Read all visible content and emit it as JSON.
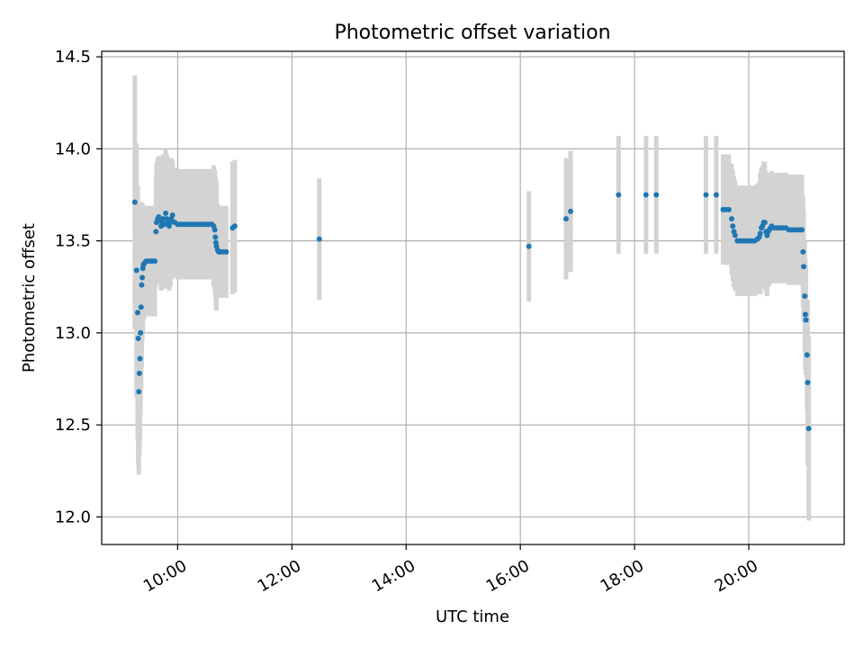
{
  "chart_data": {
    "type": "scatter",
    "title": "Photometric offset variation",
    "xlabel": "UTC time",
    "ylabel": "Photometric offset",
    "x_unit": "hour",
    "xlim": [
      8.67,
      21.67
    ],
    "ylim": [
      11.85,
      14.53
    ],
    "x_ticks": [
      {
        "value": 10,
        "label": "10:00"
      },
      {
        "value": 12,
        "label": "12:00"
      },
      {
        "value": 14,
        "label": "14:00"
      },
      {
        "value": 16,
        "label": "16:00"
      },
      {
        "value": 18,
        "label": "18:00"
      },
      {
        "value": 20,
        "label": "20:00"
      }
    ],
    "y_ticks": [
      {
        "value": 12.0,
        "label": "12.0"
      },
      {
        "value": 12.5,
        "label": "12.5"
      },
      {
        "value": 13.0,
        "label": "13.0"
      },
      {
        "value": 13.5,
        "label": "13.5"
      },
      {
        "value": 14.0,
        "label": "14.0"
      },
      {
        "value": 14.5,
        "label": "14.5"
      }
    ],
    "grid": true,
    "colors": {
      "points": "#1f77b4",
      "error_bars": "#d3d3d3",
      "grid": "#b0b0b0",
      "axes": "#000000"
    },
    "series": [
      {
        "points": [
          [
            9.25,
            13.71,
            0.69
          ],
          [
            9.28,
            13.34,
            0.69
          ],
          [
            9.3,
            13.11,
            0.69
          ],
          [
            9.31,
            12.97,
            0.69
          ],
          [
            9.32,
            12.68,
            0.45
          ],
          [
            9.33,
            12.78,
            0.45
          ],
          [
            9.34,
            12.86,
            0.45
          ],
          [
            9.35,
            13.0,
            0.45
          ],
          [
            9.36,
            13.14,
            0.45
          ],
          [
            9.37,
            13.26,
            0.45
          ],
          [
            9.38,
            13.3,
            0.35
          ],
          [
            9.39,
            13.35,
            0.35
          ],
          [
            9.4,
            13.37,
            0.3
          ],
          [
            9.42,
            13.38,
            0.3
          ],
          [
            9.45,
            13.39,
            0.3
          ],
          [
            9.5,
            13.39,
            0.3
          ],
          [
            9.55,
            13.39,
            0.3
          ],
          [
            9.6,
            13.39,
            0.3
          ],
          [
            9.62,
            13.55,
            0.3
          ],
          [
            9.63,
            13.6,
            0.33
          ],
          [
            9.65,
            13.62,
            0.33
          ],
          [
            9.67,
            13.63,
            0.33
          ],
          [
            9.69,
            13.61,
            0.33
          ],
          [
            9.71,
            13.58,
            0.35
          ],
          [
            9.73,
            13.6,
            0.35
          ],
          [
            9.75,
            13.62,
            0.35
          ],
          [
            9.77,
            13.59,
            0.35
          ],
          [
            9.79,
            13.65,
            0.35
          ],
          [
            9.81,
            13.62,
            0.35
          ],
          [
            9.83,
            13.6,
            0.35
          ],
          [
            9.85,
            13.58,
            0.35
          ],
          [
            9.87,
            13.6,
            0.35
          ],
          [
            9.89,
            13.62,
            0.33
          ],
          [
            9.91,
            13.64,
            0.3
          ],
          [
            9.95,
            13.6,
            0.3
          ],
          [
            10.0,
            13.59,
            0.3
          ],
          [
            10.05,
            13.59,
            0.3
          ],
          [
            10.1,
            13.59,
            0.3
          ],
          [
            10.15,
            13.59,
            0.3
          ],
          [
            10.2,
            13.59,
            0.3
          ],
          [
            10.25,
            13.59,
            0.3
          ],
          [
            10.3,
            13.59,
            0.3
          ],
          [
            10.35,
            13.59,
            0.3
          ],
          [
            10.4,
            13.59,
            0.3
          ],
          [
            10.45,
            13.59,
            0.3
          ],
          [
            10.5,
            13.59,
            0.3
          ],
          [
            10.55,
            13.59,
            0.3
          ],
          [
            10.6,
            13.59,
            0.3
          ],
          [
            10.63,
            13.58,
            0.33
          ],
          [
            10.65,
            13.56,
            0.33
          ],
          [
            10.66,
            13.52,
            0.33
          ],
          [
            10.67,
            13.49,
            0.35
          ],
          [
            10.68,
            13.47,
            0.35
          ],
          [
            10.7,
            13.45,
            0.25
          ],
          [
            10.72,
            13.44,
            0.25
          ],
          [
            10.75,
            13.44,
            0.25
          ],
          [
            10.8,
            13.44,
            0.25
          ],
          [
            10.85,
            13.44,
            0.25
          ],
          [
            10.96,
            13.57,
            0.36
          ],
          [
            11.0,
            13.58,
            0.36
          ],
          [
            12.48,
            13.51,
            0.33
          ],
          [
            16.15,
            13.47,
            0.3
          ],
          [
            16.8,
            13.62,
            0.33
          ],
          [
            16.88,
            13.66,
            0.33
          ],
          [
            17.72,
            13.75,
            0.32
          ],
          [
            18.2,
            13.75,
            0.32
          ],
          [
            18.38,
            13.75,
            0.32
          ],
          [
            19.25,
            13.75,
            0.32
          ],
          [
            19.43,
            13.75,
            0.32
          ],
          [
            19.55,
            13.67,
            0.3
          ],
          [
            19.6,
            13.67,
            0.3
          ],
          [
            19.65,
            13.67,
            0.3
          ],
          [
            19.7,
            13.62,
            0.3
          ],
          [
            19.72,
            13.58,
            0.3
          ],
          [
            19.74,
            13.55,
            0.3
          ],
          [
            19.76,
            13.53,
            0.3
          ],
          [
            19.8,
            13.5,
            0.3
          ],
          [
            19.85,
            13.5,
            0.3
          ],
          [
            19.9,
            13.5,
            0.3
          ],
          [
            19.95,
            13.5,
            0.3
          ],
          [
            20.0,
            13.5,
            0.3
          ],
          [
            20.05,
            13.5,
            0.3
          ],
          [
            20.1,
            13.5,
            0.3
          ],
          [
            20.15,
            13.51,
            0.3
          ],
          [
            20.18,
            13.52,
            0.3
          ],
          [
            20.2,
            13.54,
            0.33
          ],
          [
            20.22,
            13.57,
            0.33
          ],
          [
            20.24,
            13.58,
            0.33
          ],
          [
            20.26,
            13.6,
            0.33
          ],
          [
            20.28,
            13.6,
            0.33
          ],
          [
            20.3,
            13.55,
            0.33
          ],
          [
            20.32,
            13.53,
            0.33
          ],
          [
            20.34,
            13.55,
            0.3
          ],
          [
            20.36,
            13.56,
            0.3
          ],
          [
            20.38,
            13.57,
            0.3
          ],
          [
            20.4,
            13.58,
            0.3
          ],
          [
            20.45,
            13.57,
            0.3
          ],
          [
            20.5,
            13.57,
            0.3
          ],
          [
            20.55,
            13.57,
            0.3
          ],
          [
            20.6,
            13.57,
            0.3
          ],
          [
            20.65,
            13.57,
            0.3
          ],
          [
            20.7,
            13.56,
            0.3
          ],
          [
            20.75,
            13.56,
            0.3
          ],
          [
            20.8,
            13.56,
            0.3
          ],
          [
            20.85,
            13.56,
            0.3
          ],
          [
            20.9,
            13.56,
            0.3
          ],
          [
            20.93,
            13.56,
            0.3
          ],
          [
            20.95,
            13.44,
            0.3
          ],
          [
            20.96,
            13.36,
            0.3
          ],
          [
            20.98,
            13.2,
            0.3
          ],
          [
            20.99,
            13.1,
            0.3
          ],
          [
            21.0,
            13.07,
            0.3
          ],
          [
            21.02,
            12.88,
            0.3
          ],
          [
            21.03,
            12.73,
            0.45
          ],
          [
            21.05,
            12.48,
            0.5
          ]
        ]
      }
    ]
  }
}
